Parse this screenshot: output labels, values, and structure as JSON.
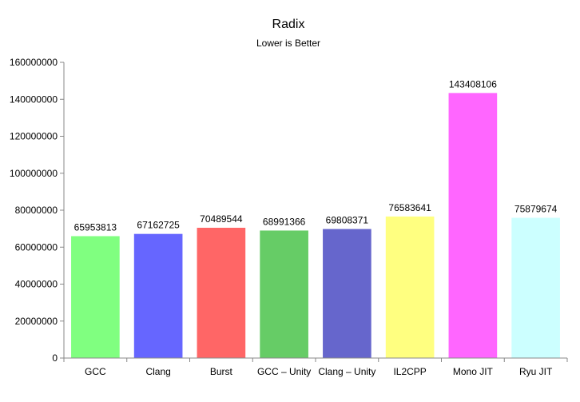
{
  "chart_data": {
    "type": "bar",
    "title": "Radix",
    "subtitle": "Lower is Better",
    "xlabel": "",
    "ylabel": "",
    "categories": [
      "GCC",
      "Clang",
      "Burst",
      "GCC – Unity",
      "Clang – Unity",
      "IL2CPP",
      "Mono JIT",
      "Ryu JIT"
    ],
    "values": [
      65953813,
      67162725,
      70489544,
      68991366,
      69808371,
      76583641,
      143408106,
      75879674
    ],
    "data_labels": [
      "65953813",
      "67162725",
      "70489544",
      "68991366",
      "69808371",
      "76583641",
      "143408106",
      "75879674"
    ],
    "colors": [
      "#80ff80",
      "#6666ff",
      "#ff6666",
      "#66cc66",
      "#6666cc",
      "#ffff80",
      "#ff66ff",
      "#ccffff"
    ],
    "ylim": [
      0,
      160000000
    ],
    "yticks": [
      0,
      20000000,
      40000000,
      60000000,
      80000000,
      100000000,
      120000000,
      140000000,
      160000000
    ],
    "ytick_labels": [
      "0",
      "20000000",
      "40000000",
      "60000000",
      "80000000",
      "100000000",
      "120000000",
      "140000000",
      "160000000"
    ],
    "grid": false,
    "legend": "none"
  }
}
